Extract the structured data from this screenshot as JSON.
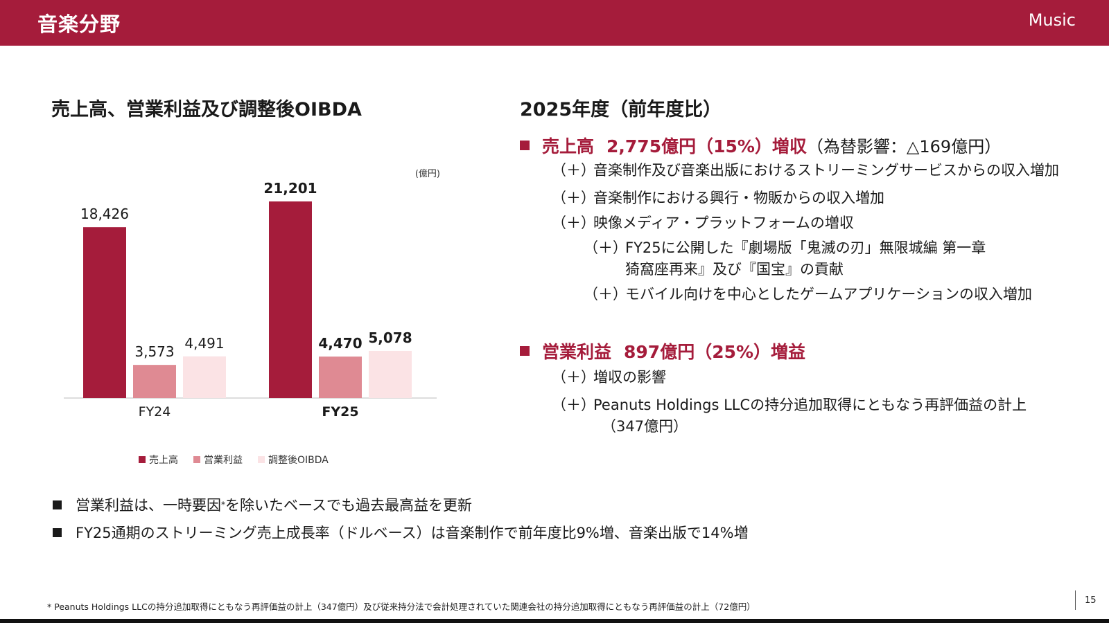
{
  "header": {
    "title": "音楽分野",
    "right": "Music"
  },
  "left_title": "売上高、営業利益及び調整後OIBDA",
  "right_title": "2025年度（前年度比）",
  "chart_data": {
    "type": "bar",
    "unit": "(億円)",
    "categories": [
      "FY24",
      "FY25"
    ],
    "series": [
      {
        "name": "売上高",
        "values": [
          18426,
          21201
        ],
        "labels": [
          "18,426",
          "21,201"
        ],
        "color": "#a51c3b"
      },
      {
        "name": "営業利益",
        "values": [
          3573,
          4470
        ],
        "labels": [
          "3,573",
          "4,470"
        ],
        "color": "#df8a93"
      },
      {
        "name": "調整後OIBDA",
        "values": [
          4491,
          5078
        ],
        "labels": [
          "4,491",
          "5,078"
        ],
        "color": "#fbe3e5"
      }
    ],
    "ylim": [
      0,
      21201
    ],
    "grid": false,
    "legend": "bottom"
  },
  "highlights": {
    "sales": {
      "label": "売上高",
      "value": "2,775億円（15%）増収",
      "note": "（為替影響：△169億円）",
      "items": [
        {
          "sign": "（＋）",
          "text": "音楽制作及び音楽出版におけるストリーミングサービスからの収入増加"
        },
        {
          "sign": "（＋）",
          "text": "音楽制作における興行・物販からの収入増加"
        },
        {
          "sign": "（＋）",
          "text": "映像メディア・プラットフォームの増収"
        }
      ],
      "subitems": [
        {
          "sign": "（＋）",
          "text": "FY25に公開した『劇場版「鬼滅の刃」無限城編 第一章",
          "cont": "猗窩座再来』及び『国宝』の貢献"
        },
        {
          "sign": "（＋）",
          "text": "モバイル向けを中心としたゲームアプリケーションの収入増加"
        }
      ]
    },
    "profit": {
      "label": "営業利益",
      "value": "897億円（25%）増益",
      "items": [
        {
          "sign": "（＋）",
          "text": "増収の影響"
        },
        {
          "sign": "（＋）",
          "text": "Peanuts Holdings LLCの持分追加取得にともなう再評価益の計上",
          "cont": "（347億円）"
        }
      ]
    }
  },
  "bullets": {
    "b1_pre": "営業利益は、一時要因",
    "b1_star": "*",
    "b1_post": "を除いたベースでも過去最高益を更新",
    "b2": "FY25通期のストリーミング売上成長率（ドルベース）は音楽制作で前年度比9%増、音楽出版で14%増"
  },
  "footnote": "* Peanuts Holdings LLCの持分追加取得にともなう再評価益の計上（347億円）及び従来持分法で会計処理されていた関連会社の持分追加取得にともなう再評価益の計上（72億円）",
  "page_number": "15"
}
